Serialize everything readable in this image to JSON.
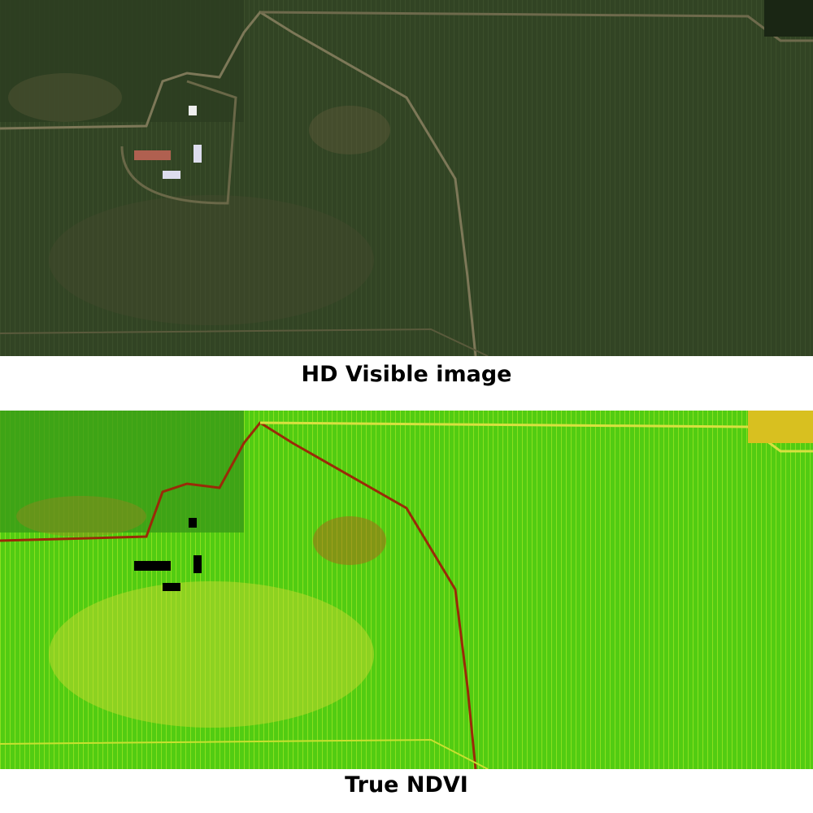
{
  "panels": [
    {
      "caption": "HD Visible image",
      "base_color": "#2f3f22",
      "road_color": "#8a8060"
    },
    {
      "caption": "True NDVI",
      "base_color": "#4fd014",
      "road_color": "#9a2a08"
    }
  ]
}
